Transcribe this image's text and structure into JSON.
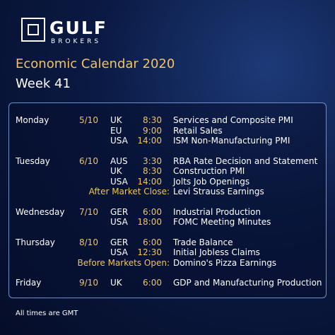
{
  "header": {
    "brand": "GULF",
    "brand_sub": "BROKERS",
    "title": "Economic Calendar 2020",
    "subtitle": "Week 41"
  },
  "days": [
    {
      "day": "Monday",
      "date": "5/10",
      "events": [
        {
          "country": "UK",
          "time": "8:30",
          "event": "Services and Composite PMI"
        },
        {
          "country": "EU",
          "time": "9:00",
          "event": "Retail Sales"
        },
        {
          "country": "USA",
          "time": "14:00",
          "event": "ISM Non-Manufacturing PMI"
        }
      ]
    },
    {
      "day": "Tuesday",
      "date": "6/10",
      "events": [
        {
          "country": "AUS",
          "time": "3:30",
          "event": "RBA Rate Decision and Statement"
        },
        {
          "country": "UK",
          "time": "8:30",
          "event": "Construction PMI"
        },
        {
          "country": "USA",
          "time": "14:00",
          "event": "Jolts Job Openings"
        },
        {
          "note": "After Market Close:",
          "event": "Levi Strauss Earnings"
        }
      ]
    },
    {
      "day": "Wednesday",
      "date": "7/10",
      "events": [
        {
          "country": "GER",
          "time": "6:00",
          "event": "Industrial Production"
        },
        {
          "country": "USA",
          "time": "18:00",
          "event": "FOMC Meeting Minutes"
        }
      ]
    },
    {
      "day": "Thursday",
      "date": "8/10",
      "events": [
        {
          "country": "GER",
          "time": "6:00",
          "event": "Trade Balance"
        },
        {
          "country": "USA",
          "time": "12:30",
          "event": "Initial Jobless Claims"
        },
        {
          "note": "Before Markets Open:",
          "event": "Domino's Pizza Earnings"
        }
      ]
    },
    {
      "day": "Friday",
      "date": "9/10",
      "events": [
        {
          "country": "UK",
          "time": "6:00",
          "event": "GDP and Manufacturing Production"
        }
      ]
    }
  ],
  "footer": "All times are GMT"
}
